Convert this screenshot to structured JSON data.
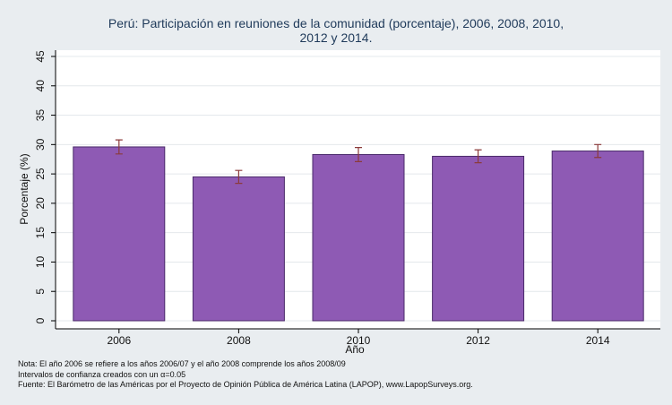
{
  "chart_data": {
    "type": "bar",
    "title_line1": "Perú: Participación en reuniones de la comunidad (porcentaje), 2006, 2008, 2010,",
    "title_line2": "2012 y 2014.",
    "xlabel": "Año",
    "ylabel": "Porcentaje (%)",
    "categories": [
      "2006",
      "2008",
      "2010",
      "2012",
      "2014"
    ],
    "values": [
      29.6,
      24.5,
      28.3,
      28.0,
      28.9
    ],
    "ci_low": [
      28.4,
      23.4,
      27.1,
      26.9,
      27.8
    ],
    "ci_high": [
      30.8,
      25.6,
      29.5,
      29.1,
      30.0
    ],
    "ylim": [
      0,
      45
    ],
    "yticks": [
      "0",
      "5",
      "10",
      "15",
      "20",
      "25",
      "30",
      "35",
      "40",
      "45"
    ],
    "grid": true,
    "bar_color": "#8e5ab4",
    "errorbar_color": "#8b3a3a"
  },
  "footnotes": {
    "line1": "Nota: El año 2006 se refiere a los años 2006/07 y el año 2008 comprende los años 2008/09",
    "line2_prefix": "Intervalos de confianza creados con un ",
    "alpha_symbol": "α",
    "line2_suffix": "=0.05",
    "line3": "Fuente: El Barómetro de las Américas por el Proyecto de Opinión Pública de América Latina (LAPOP), www.LapopSurveys.org."
  }
}
